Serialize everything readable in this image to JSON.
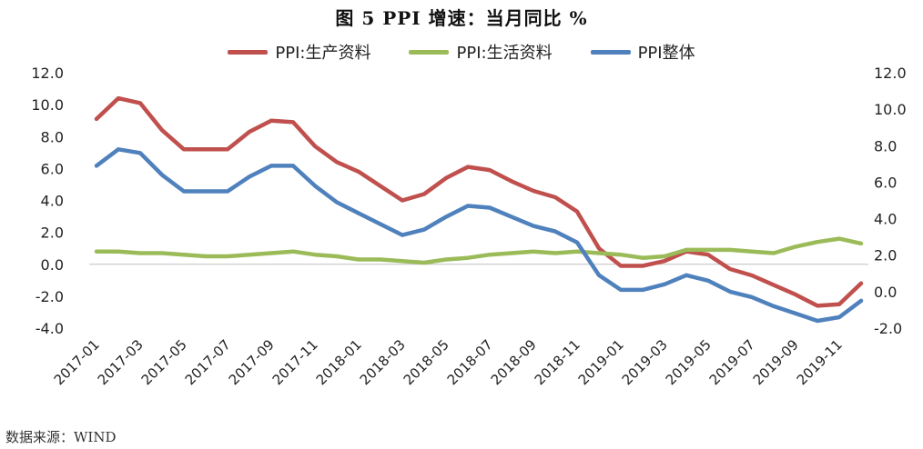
{
  "title": "图 5    PPI 增速：当月同比   %",
  "source": "数据来源：WIND",
  "chart_data": {
    "type": "line",
    "x": [
      "2017-01",
      "2017-02",
      "2017-03",
      "2017-04",
      "2017-05",
      "2017-06",
      "2017-07",
      "2017-08",
      "2017-09",
      "2017-10",
      "2017-11",
      "2017-12",
      "2018-01",
      "2018-02",
      "2018-03",
      "2018-04",
      "2018-05",
      "2018-06",
      "2018-07",
      "2018-08",
      "2018-09",
      "2018-10",
      "2018-11",
      "2018-12",
      "2019-01",
      "2019-02",
      "2019-03",
      "2019-04",
      "2019-05",
      "2019-06",
      "2019-07",
      "2019-08",
      "2019-09",
      "2019-10",
      "2019-11",
      "2019-12"
    ],
    "xticks": [
      "2017-01",
      "2017-03",
      "2017-05",
      "2017-07",
      "2017-09",
      "2017-11",
      "2018-01",
      "2018-03",
      "2018-05",
      "2018-07",
      "2018-09",
      "2018-11",
      "2019-01",
      "2019-03",
      "2019-05",
      "2019-07",
      "2019-09",
      "2019-11"
    ],
    "series": [
      {
        "name": "PPI:生产资料",
        "axis": "left",
        "color": "#C0504D",
        "values": [
          9.1,
          10.4,
          10.1,
          8.4,
          7.2,
          7.2,
          7.2,
          8.3,
          9.0,
          8.9,
          7.4,
          6.4,
          5.8,
          4.9,
          4.0,
          4.4,
          5.4,
          6.1,
          5.9,
          5.2,
          4.6,
          4.2,
          3.3,
          1.0,
          -0.1,
          -0.1,
          0.2,
          0.8,
          0.6,
          -0.3,
          -0.7,
          -1.3,
          -1.9,
          -2.6,
          -2.5,
          -1.2
        ]
      },
      {
        "name": "PPI:生活资料",
        "axis": "left",
        "color": "#9BBB59",
        "values": [
          0.8,
          0.8,
          0.7,
          0.7,
          0.6,
          0.5,
          0.5,
          0.6,
          0.7,
          0.8,
          0.6,
          0.5,
          0.3,
          0.3,
          0.2,
          0.1,
          0.3,
          0.4,
          0.6,
          0.7,
          0.8,
          0.7,
          0.8,
          0.7,
          0.6,
          0.4,
          0.5,
          0.9,
          0.9,
          0.9,
          0.8,
          0.7,
          1.1,
          1.4,
          1.6,
          1.3
        ]
      },
      {
        "name": "PPI整体",
        "axis": "right",
        "color": "#4F81BD",
        "values": [
          6.9,
          7.8,
          7.6,
          6.4,
          5.5,
          5.5,
          5.5,
          6.3,
          6.9,
          6.9,
          5.8,
          4.9,
          4.3,
          3.7,
          3.1,
          3.4,
          4.1,
          4.7,
          4.6,
          4.1,
          3.6,
          3.3,
          2.7,
          0.9,
          0.1,
          0.1,
          0.4,
          0.9,
          0.6,
          0.0,
          -0.3,
          -0.8,
          -1.2,
          -1.6,
          -1.4,
          -0.5
        ]
      }
    ],
    "y_left": {
      "min": -4,
      "max": 12,
      "step": 2,
      "ticks": [
        "-4.0",
        "-2.0",
        "0.0",
        "2.0",
        "4.0",
        "6.0",
        "8.0",
        "10.0",
        "12.0"
      ]
    },
    "y_right": {
      "min": -2,
      "max": 12,
      "step": 2,
      "ticks": [
        "-2.0",
        "0.0",
        "2.0",
        "4.0",
        "6.0",
        "8.0",
        "10.0",
        "12.0"
      ]
    },
    "legend_position": "top-center",
    "grid": false
  }
}
